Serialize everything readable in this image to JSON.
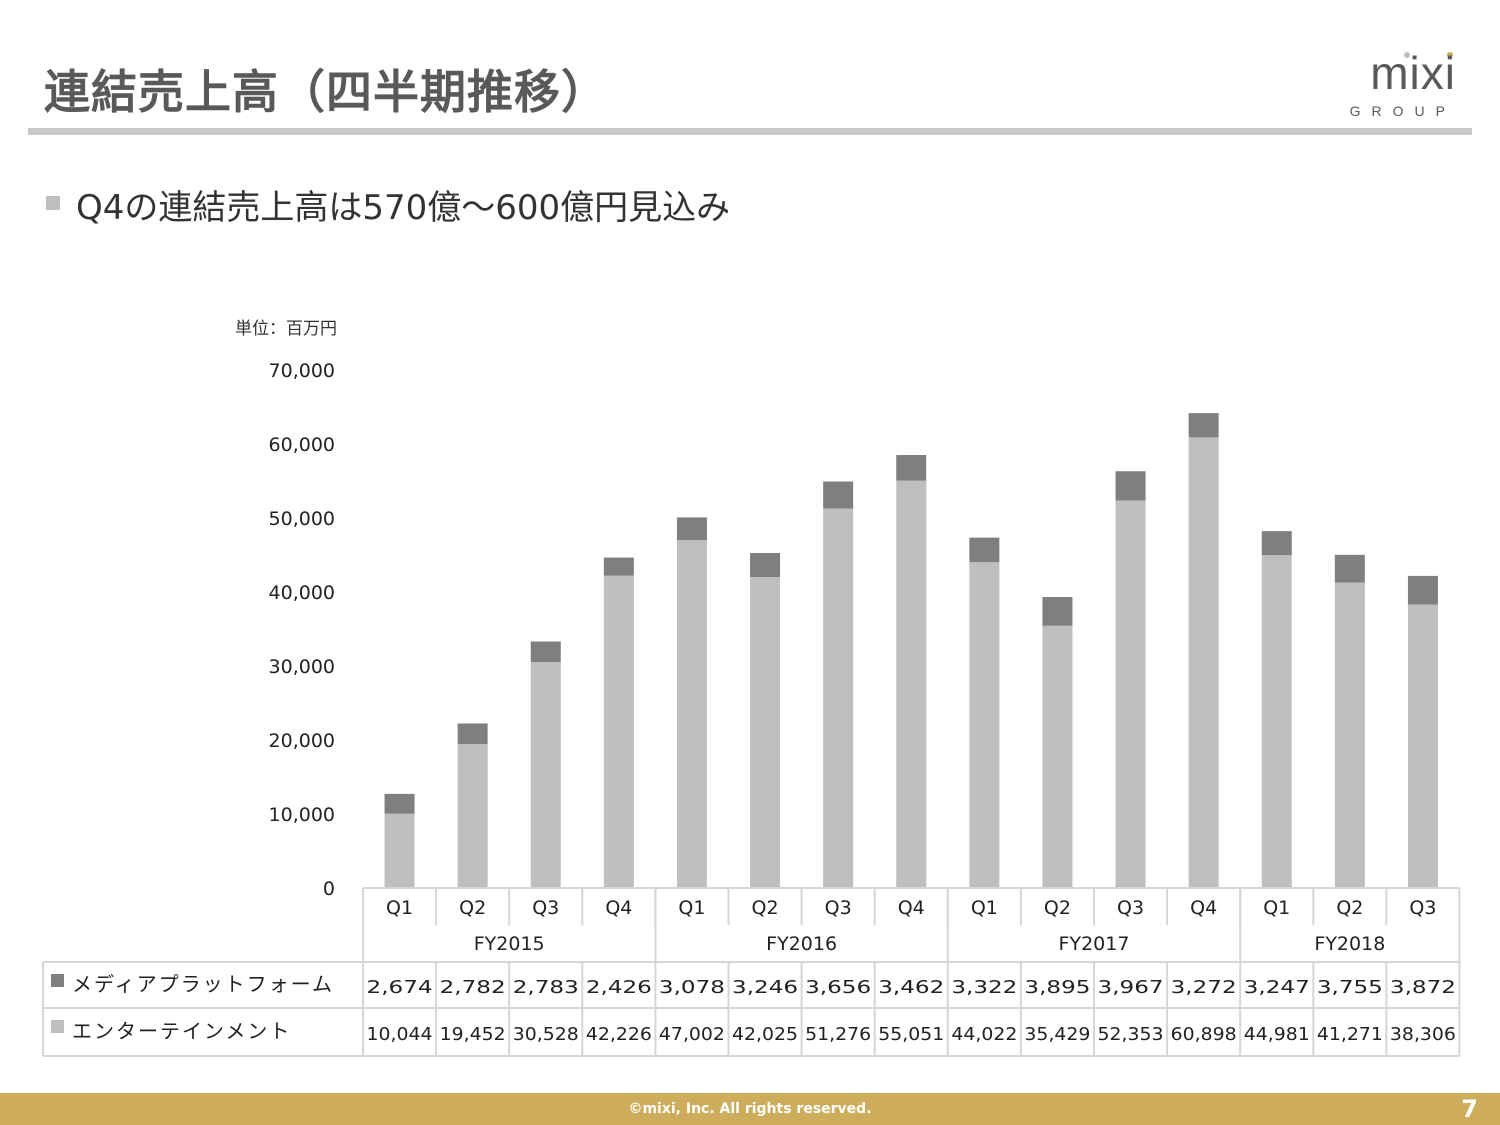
{
  "page": {
    "title": "連結売上高（四半期推移）",
    "headline": "Q4の連結売上高は570億～600億円見込み",
    "copyright": "©mixi, Inc. All rights reserved.",
    "page_number": "7"
  },
  "logo": {
    "name": "mixi",
    "sub": "GROUP"
  },
  "chart_data": {
    "type": "bar",
    "stacked": true,
    "unit_label": "単位：百万円",
    "ylim": [
      0,
      70000
    ],
    "yticks": [
      0,
      10000,
      20000,
      30000,
      40000,
      50000,
      60000,
      70000
    ],
    "ytick_labels": [
      "0",
      "10,000",
      "20,000",
      "30,000",
      "40,000",
      "50,000",
      "60,000",
      "70,000"
    ],
    "grid": false,
    "categories": [
      "Q1",
      "Q2",
      "Q3",
      "Q4",
      "Q1",
      "Q2",
      "Q3",
      "Q4",
      "Q1",
      "Q2",
      "Q3",
      "Q4",
      "Q1",
      "Q2",
      "Q3"
    ],
    "groups": [
      {
        "label": "FY2015",
        "count": 4
      },
      {
        "label": "FY2016",
        "count": 4
      },
      {
        "label": "FY2017",
        "count": 4
      },
      {
        "label": "FY2018",
        "count": 3
      }
    ],
    "series": [
      {
        "name": "エンターテインメント",
        "color": "#bfbfbf",
        "values": [
          10044,
          19452,
          30528,
          42226,
          47002,
          42025,
          51276,
          55051,
          44022,
          35429,
          52353,
          60898,
          44981,
          41271,
          38306
        ],
        "labels": [
          "10,044",
          "19,452",
          "30,528",
          "42,226",
          "47,002",
          "42,025",
          "51,276",
          "55,051",
          "44,022",
          "35,429",
          "52,353",
          "60,898",
          "44,981",
          "41,271",
          "38,306"
        ]
      },
      {
        "name": "メディアプラットフォーム",
        "color": "#7f7f7f",
        "values": [
          2674,
          2782,
          2783,
          2426,
          3078,
          3246,
          3656,
          3462,
          3322,
          3895,
          3967,
          3272,
          3247,
          3755,
          3872
        ],
        "labels": [
          "2,674",
          "2,782",
          "2,783",
          "2,426",
          "3,078",
          "3,246",
          "3,656",
          "3,462",
          "3,322",
          "3,895",
          "3,967",
          "3,272",
          "3,247",
          "3,755",
          "3,872"
        ]
      }
    ],
    "table_row_order": [
      "メディアプラットフォーム",
      "エンターテインメント"
    ]
  }
}
